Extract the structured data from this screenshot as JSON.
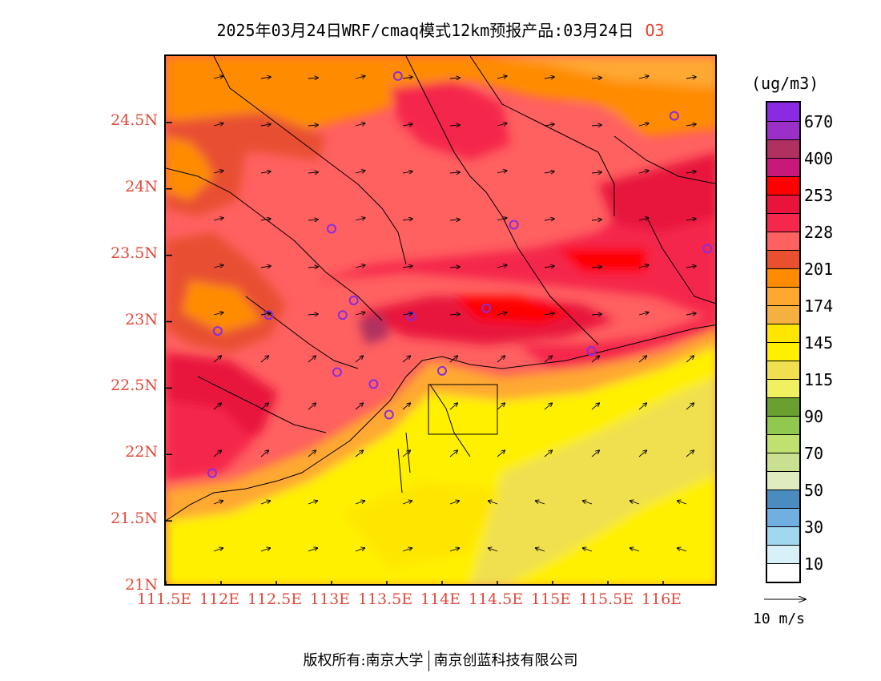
{
  "title": {
    "main": "2025年03月24日WRF/cmaq模式12km预报产品:03月24日",
    "variable": "O3"
  },
  "axes": {
    "lat_labels": [
      "24.5N",
      "24N",
      "23.5N",
      "23N",
      "22.5N",
      "22N",
      "21.5N",
      "21N"
    ],
    "lat_values": [
      24.5,
      24.0,
      23.5,
      23.0,
      22.5,
      22.0,
      21.5,
      21.0
    ],
    "lon_labels": [
      "111.5E",
      "112E",
      "112.5E",
      "113E",
      "113.5E",
      "114E",
      "114.5E",
      "115E",
      "115.5E",
      "116E"
    ],
    "lon_values": [
      111.5,
      112.0,
      112.5,
      113.0,
      113.5,
      114.0,
      114.5,
      115.0,
      115.5,
      116.0
    ],
    "lon_range": [
      111.5,
      116.5
    ],
    "lat_range": [
      21.0,
      25.0
    ]
  },
  "legend": {
    "unit": "(ug/m3)",
    "colors": [
      "#8a2be2",
      "#9b30c8",
      "#b03060",
      "#c8187a",
      "#ff0000",
      "#e8143c",
      "#f5284c",
      "#ff6060",
      "#e85030",
      "#ff8c00",
      "#ffa830",
      "#f5b040",
      "#ffe600",
      "#fff000",
      "#f0e050",
      "#f0f060",
      "#6aa030",
      "#90c850",
      "#c0e070",
      "#c8e090",
      "#e0ecc0",
      "#4a8cc0",
      "#70b0e0",
      "#a0d8f0",
      "#d8f0f8",
      "#ffffff"
    ],
    "labels": [
      "670",
      "400",
      "253",
      "228",
      "201",
      "174",
      "145",
      "115",
      "90",
      "70",
      "50",
      "30",
      "10"
    ]
  },
  "wind_reference": {
    "label": "10 m/s"
  },
  "stations": [
    {
      "lon": 113.6,
      "lat": 24.85
    },
    {
      "lon": 116.1,
      "lat": 24.55
    },
    {
      "lon": 113.0,
      "lat": 23.7
    },
    {
      "lon": 114.65,
      "lat": 23.73
    },
    {
      "lon": 116.4,
      "lat": 23.55
    },
    {
      "lon": 112.43,
      "lat": 23.05
    },
    {
      "lon": 113.1,
      "lat": 23.05
    },
    {
      "lon": 113.2,
      "lat": 23.16
    },
    {
      "lon": 113.72,
      "lat": 23.04
    },
    {
      "lon": 114.4,
      "lat": 23.1
    },
    {
      "lon": 111.97,
      "lat": 22.93
    },
    {
      "lon": 113.05,
      "lat": 22.62
    },
    {
      "lon": 113.38,
      "lat": 22.53
    },
    {
      "lon": 114.0,
      "lat": 22.63
    },
    {
      "lon": 115.35,
      "lat": 22.78
    },
    {
      "lon": 113.52,
      "lat": 22.3
    },
    {
      "lon": 111.92,
      "lat": 21.86
    }
  ],
  "copyright": {
    "part1": "版权所有:南京大学",
    "part2": "南京创蓝科技有限公司"
  }
}
